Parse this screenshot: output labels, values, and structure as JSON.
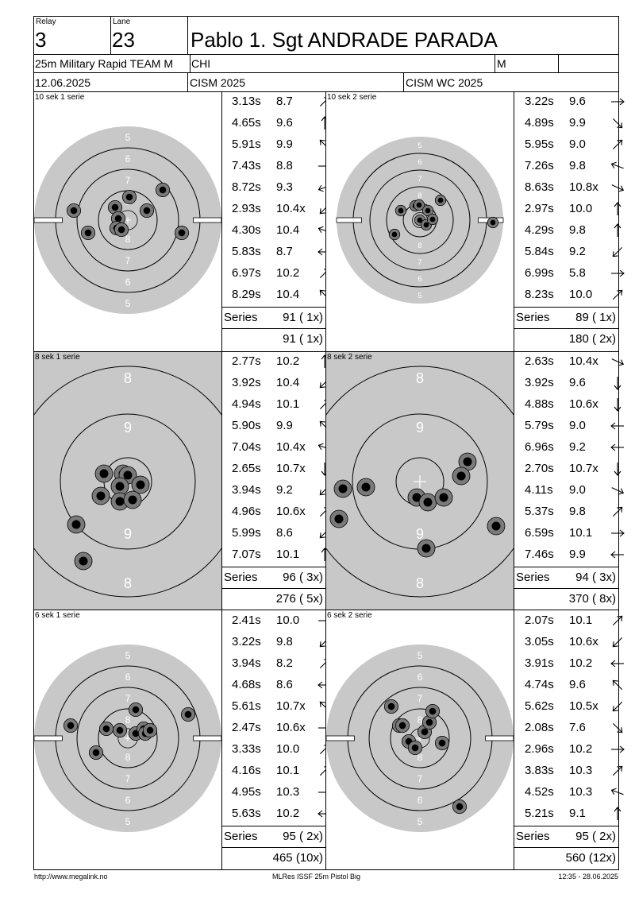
{
  "header": {
    "relay_label": "Relay",
    "relay": "3",
    "lane_label": "Lane",
    "lane": "23",
    "name": "Pablo 1. Sgt ANDRADE PARADA",
    "event": "25m Military Rapid TEAM M",
    "nation": "CHI",
    "gender": "M",
    "date": "12.06.2025",
    "competition": "CISM 2025",
    "championship": "CISM WC 2025"
  },
  "panels": [
    {
      "label": "10 sek 1 serie",
      "kind": "precision",
      "shots": [
        {
          "time": "3.13s",
          "score": "8.7",
          "dir": "ne"
        },
        {
          "time": "4.65s",
          "score": "9.6",
          "dir": "n"
        },
        {
          "time": "5.91s",
          "score": "9.9",
          "dir": "nw"
        },
        {
          "time": "7.43s",
          "score": "8.8",
          "dir": "e"
        },
        {
          "time": "8.72s",
          "score": "9.3",
          "dir": "wsw"
        },
        {
          "time": "2.93s",
          "score": "10.4x",
          "dir": "sw"
        },
        {
          "time": "4.30s",
          "score": "10.4",
          "dir": "wnw"
        },
        {
          "time": "5.83s",
          "score": "8.7",
          "dir": "w"
        },
        {
          "time": "6.97s",
          "score": "10.2",
          "dir": "ne"
        },
        {
          "time": "8.29s",
          "score": "10.4",
          "dir": "nw"
        }
      ],
      "series_label": "Series",
      "series_total": "91 ( 1x)",
      "running_total": "91 ( 1x)"
    },
    {
      "label": "10 sek 2 serie",
      "kind": "precision-small",
      "shots": [
        {
          "time": "3.22s",
          "score": "9.6",
          "dir": "e"
        },
        {
          "time": "4.89s",
          "score": "9.9",
          "dir": "se"
        },
        {
          "time": "5.95s",
          "score": "9.0",
          "dir": "ne"
        },
        {
          "time": "7.26s",
          "score": "9.8",
          "dir": "wnw"
        },
        {
          "time": "8.63s",
          "score": "10.8x",
          "dir": "ese"
        },
        {
          "time": "2.97s",
          "score": "10.0",
          "dir": "n"
        },
        {
          "time": "4.29s",
          "score": "9.8",
          "dir": "n"
        },
        {
          "time": "5.84s",
          "score": "9.2",
          "dir": "sw"
        },
        {
          "time": "6.99s",
          "score": "5.8",
          "dir": "e"
        },
        {
          "time": "8.23s",
          "score": "10.0",
          "dir": "ne"
        }
      ],
      "series_label": "Series",
      "series_total": "89 ( 1x)",
      "running_total": "180 ( 2x)"
    },
    {
      "label": "8 sek 1 serie",
      "kind": "zoom",
      "shots": [
        {
          "time": "2.77s",
          "score": "10.2",
          "dir": "n"
        },
        {
          "time": "3.92s",
          "score": "10.4",
          "dir": "sw"
        },
        {
          "time": "4.94s",
          "score": "10.1",
          "dir": "ne"
        },
        {
          "time": "5.90s",
          "score": "9.9",
          "dir": "nw"
        },
        {
          "time": "7.04s",
          "score": "10.4x",
          "dir": "wnw"
        },
        {
          "time": "2.65s",
          "score": "10.7x",
          "dir": "s"
        },
        {
          "time": "3.94s",
          "score": "9.2",
          "dir": "sw"
        },
        {
          "time": "4.96s",
          "score": "10.6x",
          "dir": "ne"
        },
        {
          "time": "5.99s",
          "score": "8.6",
          "dir": "sw"
        },
        {
          "time": "7.07s",
          "score": "10.1",
          "dir": "n"
        }
      ],
      "series_label": "Series",
      "series_total": "96 ( 3x)",
      "running_total": "276 ( 5x)"
    },
    {
      "label": "8 sek 2 serie",
      "kind": "zoom",
      "shots": [
        {
          "time": "2.63s",
          "score": "10.4x",
          "dir": "ese"
        },
        {
          "time": "3.92s",
          "score": "9.6",
          "dir": "s"
        },
        {
          "time": "4.88s",
          "score": "10.6x",
          "dir": "s"
        },
        {
          "time": "5.79s",
          "score": "9.0",
          "dir": "w"
        },
        {
          "time": "6.96s",
          "score": "9.2",
          "dir": "w"
        },
        {
          "time": "2.70s",
          "score": "10.7x",
          "dir": "s"
        },
        {
          "time": "4.11s",
          "score": "9.0",
          "dir": "ese"
        },
        {
          "time": "5.37s",
          "score": "9.8",
          "dir": "ne"
        },
        {
          "time": "6.59s",
          "score": "10.1",
          "dir": "e"
        },
        {
          "time": "7.46s",
          "score": "9.9",
          "dir": "w"
        }
      ],
      "series_label": "Series",
      "series_total": "94 ( 3x)",
      "running_total": "370 ( 8x)"
    },
    {
      "label": "6 sek 1 serie",
      "kind": "precision",
      "shots": [
        {
          "time": "2.41s",
          "score": "10.0",
          "dir": "e"
        },
        {
          "time": "3.22s",
          "score": "9.8",
          "dir": "sw"
        },
        {
          "time": "3.94s",
          "score": "8.2",
          "dir": "ne"
        },
        {
          "time": "4.68s",
          "score": "8.6",
          "dir": "w"
        },
        {
          "time": "5.61s",
          "score": "10.7x",
          "dir": "nw"
        },
        {
          "time": "2.47s",
          "score": "10.6x",
          "dir": "e"
        },
        {
          "time": "3.33s",
          "score": "10.0",
          "dir": "ne"
        },
        {
          "time": "4.16s",
          "score": "10.1",
          "dir": "ne"
        },
        {
          "time": "4.95s",
          "score": "10.3",
          "dir": "e"
        },
        {
          "time": "5.63s",
          "score": "10.2",
          "dir": "w"
        }
      ],
      "series_label": "Series",
      "series_total": "95 ( 2x)",
      "running_total": "465 (10x)"
    },
    {
      "label": "6 sek 2 serie",
      "kind": "precision",
      "shots": [
        {
          "time": "2.07s",
          "score": "10.1",
          "dir": "ne"
        },
        {
          "time": "3.05s",
          "score": "10.6x",
          "dir": "sw"
        },
        {
          "time": "3.91s",
          "score": "10.2",
          "dir": "w"
        },
        {
          "time": "4.74s",
          "score": "9.6",
          "dir": "nw"
        },
        {
          "time": "5.62s",
          "score": "10.5x",
          "dir": "sw"
        },
        {
          "time": "2.08s",
          "score": "7.6",
          "dir": "se"
        },
        {
          "time": "2.96s",
          "score": "10.2",
          "dir": "e"
        },
        {
          "time": "3.83s",
          "score": "10.3",
          "dir": "ne"
        },
        {
          "time": "4.52s",
          "score": "10.3",
          "dir": "wnw"
        },
        {
          "time": "5.21s",
          "score": "9.1",
          "dir": "n"
        }
      ],
      "series_label": "Series",
      "series_total": "95 ( 2x)",
      "running_total": "560 (12x)"
    }
  ],
  "targets": {
    "precision_labels": [
      "5",
      "6",
      "7",
      "8",
      "9"
    ],
    "zoom_labels": [
      "8",
      "9"
    ]
  },
  "footer": {
    "url": "http://www.megalink.no",
    "software": "MLRes ISSF 25m Pistol Big",
    "timestamp": "12:35 - 28.06.2025"
  }
}
